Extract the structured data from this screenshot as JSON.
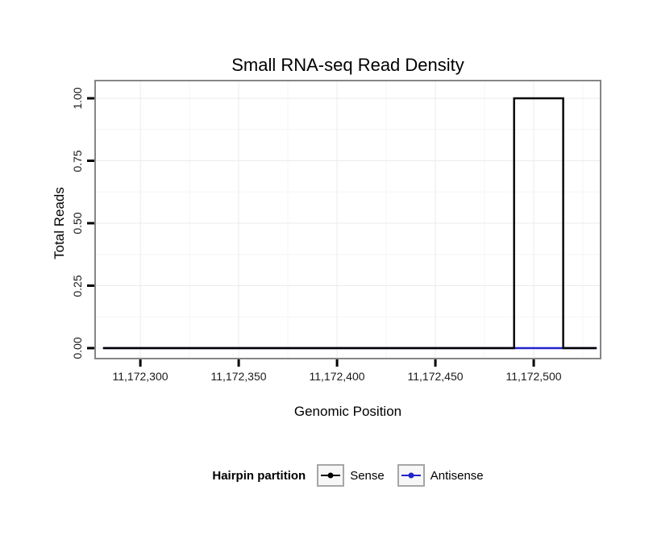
{
  "chart_data": {
    "type": "line",
    "title": "Small RNA-seq Read Density",
    "xlabel": "Genomic Position",
    "ylabel": "Total Reads",
    "x_ticks": [
      11172300,
      11172350,
      11172400,
      11172450,
      11172500
    ],
    "x_tick_labels": [
      "11,172,300",
      "11,172,350",
      "11,172,400",
      "11,172,450",
      "11,172,500"
    ],
    "y_ticks": [
      0,
      0.25,
      0.5,
      0.75,
      1
    ],
    "y_tick_labels": [
      "0.00",
      "0.25",
      "0.50",
      "0.75",
      "1.00"
    ],
    "x_range": [
      11172277,
      11172534
    ],
    "y_range": [
      0,
      1
    ],
    "grid": true,
    "legend_position": "bottom",
    "legend_title": "Hairpin partition",
    "series": [
      {
        "name": "Sense",
        "color": "#000000",
        "points": [
          [
            11172281,
            0
          ],
          [
            11172490,
            0
          ],
          [
            11172490,
            1
          ],
          [
            11172515,
            1
          ],
          [
            11172515,
            0
          ],
          [
            11172532,
            0
          ]
        ]
      },
      {
        "name": "Antisense",
        "color": "#2222CC",
        "points": [
          [
            11172281,
            0
          ],
          [
            11172532,
            0
          ]
        ]
      }
    ],
    "colors": {
      "panel_border": "#858585",
      "grid_major": "#EBEBEB",
      "grid_minor": "#F5F5F5",
      "tick": "#000000",
      "legend_key_border": "#A6A6A6",
      "legend_key_fill": "#F7F7F7"
    }
  }
}
